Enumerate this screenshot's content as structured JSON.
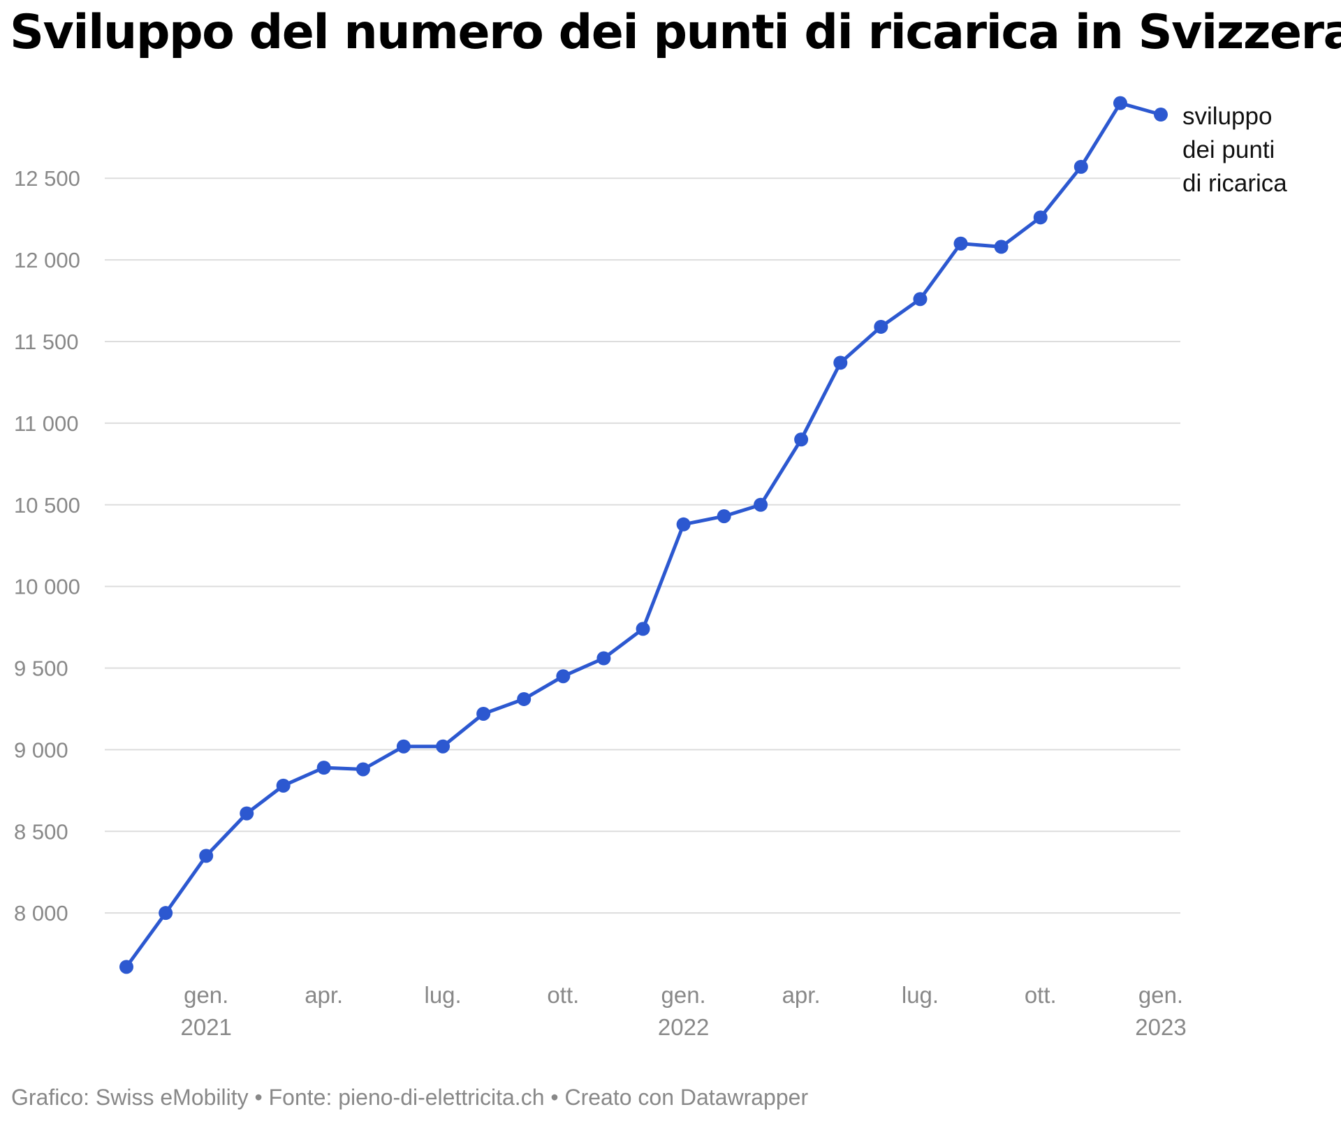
{
  "chart_data": {
    "type": "line",
    "title": "Sviluppo del numero dei punti di ricarica in Svizzera",
    "xlabel": "",
    "ylabel": "",
    "ylim": [
      7650,
      12980
    ],
    "xlim": [
      "2020-11-01",
      "2023-01-01"
    ],
    "y_ticks": [
      {
        "value": 8000,
        "label": "8 000"
      },
      {
        "value": 8500,
        "label": "8 500"
      },
      {
        "value": 9000,
        "label": "9 000"
      },
      {
        "value": 9500,
        "label": "9 500"
      },
      {
        "value": 10000,
        "label": "10 000"
      },
      {
        "value": 10500,
        "label": "10 500"
      },
      {
        "value": 11000,
        "label": "11 000"
      },
      {
        "value": 11500,
        "label": "11 500"
      },
      {
        "value": 12000,
        "label": "12 000"
      },
      {
        "value": 12500,
        "label": "12 500"
      }
    ],
    "x_ticks": [
      {
        "date": "2021-01-01",
        "label": "gen.",
        "year": "2021"
      },
      {
        "date": "2021-04-01",
        "label": "apr.",
        "year": ""
      },
      {
        "date": "2021-07-01",
        "label": "lug.",
        "year": ""
      },
      {
        "date": "2021-10-01",
        "label": "ott.",
        "year": ""
      },
      {
        "date": "2022-01-01",
        "label": "gen.",
        "year": "2022"
      },
      {
        "date": "2022-04-01",
        "label": "apr.",
        "year": ""
      },
      {
        "date": "2022-07-01",
        "label": "lug.",
        "year": ""
      },
      {
        "date": "2022-10-01",
        "label": "ott.",
        "year": ""
      },
      {
        "date": "2023-01-01",
        "label": "gen.",
        "year": "2023"
      }
    ],
    "grid": true,
    "legend": "end-of-line label, right",
    "series": [
      {
        "name": "sviluppo dei punti di ricarica",
        "name_lines": [
          "sviluppo",
          "dei punti",
          "di ricarica"
        ],
        "color": "#2c58d0",
        "points": [
          {
            "x": "2020-11-01",
            "y": 7670
          },
          {
            "x": "2020-12-01",
            "y": 8000
          },
          {
            "x": "2021-01-01",
            "y": 8350
          },
          {
            "x": "2021-02-01",
            "y": 8610
          },
          {
            "x": "2021-03-01",
            "y": 8780
          },
          {
            "x": "2021-04-01",
            "y": 8890
          },
          {
            "x": "2021-05-01",
            "y": 8880
          },
          {
            "x": "2021-06-01",
            "y": 9020
          },
          {
            "x": "2021-07-01",
            "y": 9020
          },
          {
            "x": "2021-08-01",
            "y": 9220
          },
          {
            "x": "2021-09-01",
            "y": 9310
          },
          {
            "x": "2021-10-01",
            "y": 9450
          },
          {
            "x": "2021-11-01",
            "y": 9560
          },
          {
            "x": "2021-12-01",
            "y": 9740
          },
          {
            "x": "2022-01-01",
            "y": 10380
          },
          {
            "x": "2022-02-01",
            "y": 10430
          },
          {
            "x": "2022-03-01",
            "y": 10500
          },
          {
            "x": "2022-04-01",
            "y": 10900
          },
          {
            "x": "2022-05-01",
            "y": 11370
          },
          {
            "x": "2022-06-01",
            "y": 11590
          },
          {
            "x": "2022-07-01",
            "y": 11760
          },
          {
            "x": "2022-08-01",
            "y": 12100
          },
          {
            "x": "2022-09-01",
            "y": 12080
          },
          {
            "x": "2022-10-01",
            "y": 12260
          },
          {
            "x": "2022-11-01",
            "y": 12570
          },
          {
            "x": "2022-12-01",
            "y": 12960
          },
          {
            "x": "2023-01-01",
            "y": 12890
          }
        ]
      }
    ]
  },
  "footer": "Grafico: Swiss eMobility • Fonte: pieno-di-elettricita.ch • Creato con Datawrapper"
}
